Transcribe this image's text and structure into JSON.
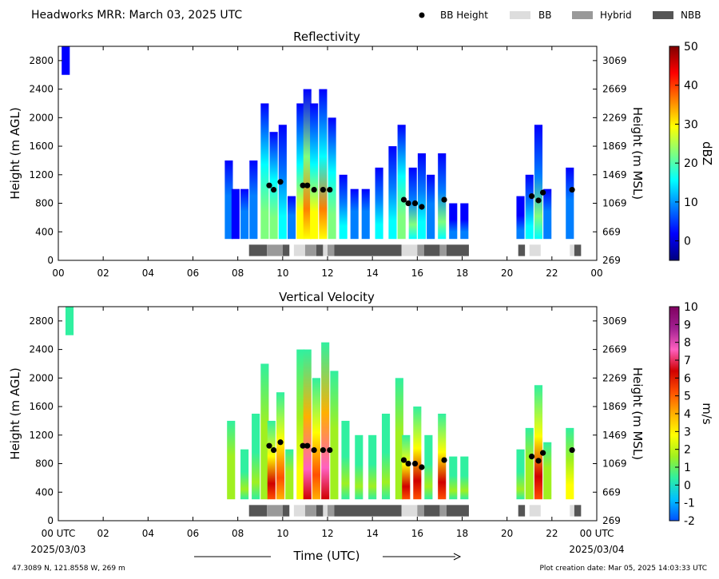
{
  "header": {
    "title": "Headworks MRR:  March 03, 2025 UTC",
    "legend": [
      {
        "label": "BB Height",
        "kind": "marker",
        "color": "#000000"
      },
      {
        "label": "BB",
        "kind": "swatch",
        "color": "#dddddd"
      },
      {
        "label": "Hybrid",
        "kind": "swatch",
        "color": "#999999"
      },
      {
        "label": "NBB",
        "kind": "swatch",
        "color": "#555555"
      }
    ]
  },
  "footer": {
    "location": "47.3089 N, 121.8558 W, 269 m",
    "creation": "Plot creation date: Mar 05, 2025 14:03:33 UTC",
    "xlabel": "Time (UTC)",
    "start_date": "2025/03/03",
    "end_date": "2025/03/04"
  },
  "chart_data": [
    {
      "type": "heatmap",
      "title": "Reflectivity",
      "ylabel": "Height (m AGL)",
      "ylabel_right": "Height (m MSL)",
      "colorbar_label": "dBZ",
      "xlim": [
        0,
        24
      ],
      "ylim": [
        0,
        3000
      ],
      "x_ticks": [
        "00",
        "02",
        "04",
        "06",
        "08",
        "10",
        "12",
        "14",
        "16",
        "18",
        "20",
        "22",
        "00"
      ],
      "y_ticks": [
        0,
        400,
        800,
        1200,
        1600,
        2000,
        2400,
        2800
      ],
      "y_ticks_right": [
        269,
        669,
        1069,
        1469,
        1869,
        2269,
        2669,
        3069
      ],
      "colorbar": {
        "min": -5,
        "max": 50,
        "ticks": [
          0,
          10,
          20,
          30,
          40,
          50
        ],
        "colors": [
          "#00007f",
          "#0000ff",
          "#007fff",
          "#00ffff",
          "#7fff7f",
          "#ffff00",
          "#ff7f00",
          "#ff0000",
          "#7f0000"
        ]
      },
      "echo_columns": [
        {
          "x": 0.33,
          "top": 3000,
          "bottom": 2600,
          "core": 2
        },
        {
          "x": 7.6,
          "top": 1400,
          "bottom": 300,
          "core": 8
        },
        {
          "x": 7.9,
          "top": 1000,
          "bottom": 300,
          "core": 5
        },
        {
          "x": 8.3,
          "top": 1000,
          "bottom": 300,
          "core": 8
        },
        {
          "x": 8.7,
          "top": 1400,
          "bottom": 300,
          "core": 10
        },
        {
          "x": 9.2,
          "top": 2200,
          "bottom": 300,
          "core": 22
        },
        {
          "x": 9.6,
          "top": 1800,
          "bottom": 300,
          "core": 24
        },
        {
          "x": 10.0,
          "top": 1900,
          "bottom": 300,
          "core": 16
        },
        {
          "x": 10.4,
          "top": 900,
          "bottom": 300,
          "core": 10
        },
        {
          "x": 10.8,
          "top": 2200,
          "bottom": 300,
          "core": 30
        },
        {
          "x": 11.1,
          "top": 2400,
          "bottom": 300,
          "core": 36
        },
        {
          "x": 11.4,
          "top": 2200,
          "bottom": 300,
          "core": 32
        },
        {
          "x": 11.8,
          "top": 2400,
          "bottom": 300,
          "core": 34
        },
        {
          "x": 12.2,
          "top": 2000,
          "bottom": 300,
          "core": 24
        },
        {
          "x": 12.7,
          "top": 1200,
          "bottom": 300,
          "core": 14
        },
        {
          "x": 13.2,
          "top": 1000,
          "bottom": 300,
          "core": 12
        },
        {
          "x": 13.7,
          "top": 1000,
          "bottom": 300,
          "core": 12
        },
        {
          "x": 14.3,
          "top": 1300,
          "bottom": 300,
          "core": 14
        },
        {
          "x": 14.9,
          "top": 1600,
          "bottom": 300,
          "core": 18
        },
        {
          "x": 15.3,
          "top": 1900,
          "bottom": 300,
          "core": 22
        },
        {
          "x": 15.8,
          "top": 1300,
          "bottom": 300,
          "core": 20
        },
        {
          "x": 16.2,
          "top": 1500,
          "bottom": 300,
          "core": 18
        },
        {
          "x": 16.6,
          "top": 1200,
          "bottom": 300,
          "core": 10
        },
        {
          "x": 17.1,
          "top": 1500,
          "bottom": 300,
          "core": 20
        },
        {
          "x": 17.6,
          "top": 800,
          "bottom": 300,
          "core": 6
        },
        {
          "x": 18.1,
          "top": 800,
          "bottom": 300,
          "core": 6
        },
        {
          "x": 20.6,
          "top": 900,
          "bottom": 300,
          "core": 6
        },
        {
          "x": 21.0,
          "top": 1200,
          "bottom": 300,
          "core": 14
        },
        {
          "x": 21.4,
          "top": 1900,
          "bottom": 300,
          "core": 20
        },
        {
          "x": 21.8,
          "top": 1000,
          "bottom": 300,
          "core": 10
        },
        {
          "x": 22.8,
          "top": 1300,
          "bottom": 300,
          "core": 12
        }
      ]
    },
    {
      "type": "heatmap",
      "title": "Vertical Velocity",
      "ylabel": "Height (m AGL)",
      "ylabel_right": "Height (m MSL)",
      "colorbar_label": "m/s",
      "xlim": [
        0,
        24
      ],
      "ylim": [
        0,
        3000
      ],
      "x_ticks": [
        "00 UTC",
        "02",
        "04",
        "06",
        "08",
        "10",
        "12",
        "14",
        "16",
        "18",
        "20",
        "22",
        "00 UTC"
      ],
      "y_ticks": [
        0,
        400,
        800,
        1200,
        1600,
        2000,
        2400,
        2800
      ],
      "y_ticks_right": [
        269,
        669,
        1069,
        1469,
        1869,
        2269,
        2669,
        3069
      ],
      "colorbar": {
        "min": -2,
        "max": 10,
        "ticks": [
          -2,
          -1,
          0,
          1,
          2,
          3,
          4,
          5,
          6,
          7,
          8,
          9,
          10
        ],
        "colors": [
          "#0050ff",
          "#00c0ff",
          "#30f0a0",
          "#a0f020",
          "#ffff00",
          "#ffb000",
          "#ff5000",
          "#d00000",
          "#ff60c0",
          "#a02090",
          "#800060"
        ]
      },
      "echo_columns": [
        {
          "x": 0.5,
          "top": 3000,
          "bottom": 2600,
          "core": 0
        },
        {
          "x": 7.7,
          "top": 1400,
          "bottom": 300,
          "core": 2
        },
        {
          "x": 8.3,
          "top": 1000,
          "bottom": 300,
          "core": 1
        },
        {
          "x": 8.8,
          "top": 1500,
          "bottom": 300,
          "core": 1
        },
        {
          "x": 9.2,
          "top": 2200,
          "bottom": 300,
          "core": 2
        },
        {
          "x": 9.5,
          "top": 1400,
          "bottom": 300,
          "core": 6
        },
        {
          "x": 9.9,
          "top": 1800,
          "bottom": 300,
          "core": 5
        },
        {
          "x": 10.3,
          "top": 1000,
          "bottom": 300,
          "core": 2
        },
        {
          "x": 10.8,
          "top": 2400,
          "bottom": 300,
          "core": 3
        },
        {
          "x": 11.1,
          "top": 2400,
          "bottom": 300,
          "core": 7
        },
        {
          "x": 11.5,
          "top": 2000,
          "bottom": 300,
          "core": 5
        },
        {
          "x": 11.9,
          "top": 2500,
          "bottom": 300,
          "core": 7
        },
        {
          "x": 12.3,
          "top": 2100,
          "bottom": 300,
          "core": 2
        },
        {
          "x": 12.8,
          "top": 1400,
          "bottom": 300,
          "core": 1
        },
        {
          "x": 13.4,
          "top": 1200,
          "bottom": 300,
          "core": 1
        },
        {
          "x": 14.0,
          "top": 1200,
          "bottom": 300,
          "core": 1
        },
        {
          "x": 14.6,
          "top": 1500,
          "bottom": 300,
          "core": 1
        },
        {
          "x": 15.2,
          "top": 2000,
          "bottom": 300,
          "core": 2
        },
        {
          "x": 15.5,
          "top": 1200,
          "bottom": 300,
          "core": 6
        },
        {
          "x": 16.0,
          "top": 1600,
          "bottom": 300,
          "core": 6
        },
        {
          "x": 16.5,
          "top": 1200,
          "bottom": 300,
          "core": 1
        },
        {
          "x": 17.1,
          "top": 1500,
          "bottom": 300,
          "core": 6
        },
        {
          "x": 17.6,
          "top": 900,
          "bottom": 300,
          "core": 1
        },
        {
          "x": 18.1,
          "top": 900,
          "bottom": 300,
          "core": 1
        },
        {
          "x": 20.6,
          "top": 1000,
          "bottom": 300,
          "core": 1
        },
        {
          "x": 21.0,
          "top": 1300,
          "bottom": 300,
          "core": 2
        },
        {
          "x": 21.4,
          "top": 1900,
          "bottom": 300,
          "core": 6
        },
        {
          "x": 21.8,
          "top": 1100,
          "bottom": 300,
          "core": 2
        },
        {
          "x": 22.8,
          "top": 1300,
          "bottom": 300,
          "core": 3
        }
      ]
    }
  ],
  "bb_height_points": [
    {
      "x": 9.4,
      "y": 1050
    },
    {
      "x": 9.6,
      "y": 990
    },
    {
      "x": 9.9,
      "y": 1100
    },
    {
      "x": 10.9,
      "y": 1050
    },
    {
      "x": 11.1,
      "y": 1050
    },
    {
      "x": 11.4,
      "y": 990
    },
    {
      "x": 11.8,
      "y": 990
    },
    {
      "x": 12.1,
      "y": 990
    },
    {
      "x": 15.4,
      "y": 850
    },
    {
      "x": 15.6,
      "y": 800
    },
    {
      "x": 15.9,
      "y": 800
    },
    {
      "x": 16.2,
      "y": 750
    },
    {
      "x": 17.2,
      "y": 850
    },
    {
      "x": 21.1,
      "y": 900
    },
    {
      "x": 21.4,
      "y": 840
    },
    {
      "x": 21.6,
      "y": 950
    },
    {
      "x": 22.9,
      "y": 990
    }
  ],
  "bb_type_segments": [
    {
      "start": 8.5,
      "end": 9.3,
      "type": "NBB"
    },
    {
      "start": 9.3,
      "end": 10.0,
      "type": "Hybrid"
    },
    {
      "start": 10.0,
      "end": 10.3,
      "type": "NBB"
    },
    {
      "start": 10.5,
      "end": 11.0,
      "type": "BB"
    },
    {
      "start": 11.0,
      "end": 11.5,
      "type": "Hybrid"
    },
    {
      "start": 11.5,
      "end": 11.8,
      "type": "NBB"
    },
    {
      "start": 11.8,
      "end": 12.0,
      "type": "BB"
    },
    {
      "start": 12.0,
      "end": 12.3,
      "type": "Hybrid"
    },
    {
      "start": 12.3,
      "end": 15.3,
      "type": "NBB"
    },
    {
      "start": 15.3,
      "end": 16.0,
      "type": "BB"
    },
    {
      "start": 16.0,
      "end": 16.3,
      "type": "Hybrid"
    },
    {
      "start": 16.3,
      "end": 17.0,
      "type": "NBB"
    },
    {
      "start": 17.0,
      "end": 17.3,
      "type": "Hybrid"
    },
    {
      "start": 17.3,
      "end": 18.3,
      "type": "NBB"
    },
    {
      "start": 20.5,
      "end": 20.8,
      "type": "NBB"
    },
    {
      "start": 21.0,
      "end": 21.5,
      "type": "BB"
    },
    {
      "start": 22.8,
      "end": 23.0,
      "type": "BB"
    },
    {
      "start": 23.0,
      "end": 23.3,
      "type": "NBB"
    }
  ]
}
